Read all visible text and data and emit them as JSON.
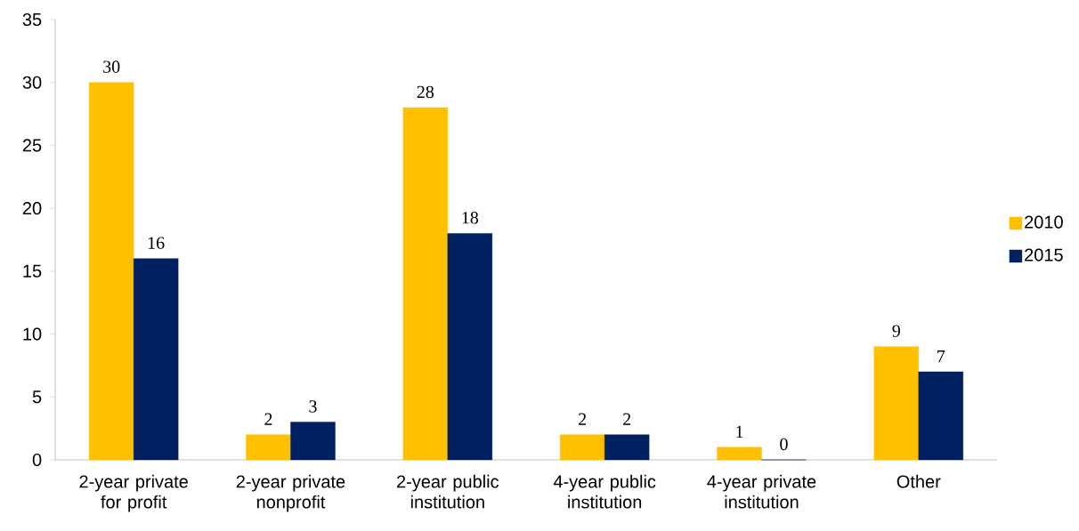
{
  "chart_data": {
    "type": "bar",
    "categories": [
      "2-year private for profit",
      "2-year private nonprofit",
      "2-year public institution",
      "4-year public institution",
      "4-year private institution",
      "Other"
    ],
    "series": [
      {
        "name": "2010",
        "color": "#ffc000",
        "values": [
          30,
          2,
          28,
          2,
          1,
          9
        ]
      },
      {
        "name": "2015",
        "color": "#002060",
        "values": [
          16,
          3,
          18,
          2,
          0,
          7
        ]
      }
    ],
    "ylim": [
      0,
      35
    ],
    "yticks": [
      0,
      5,
      10,
      15,
      20,
      25,
      30,
      35
    ],
    "grid": false,
    "legend": "right",
    "data_labels": true
  }
}
